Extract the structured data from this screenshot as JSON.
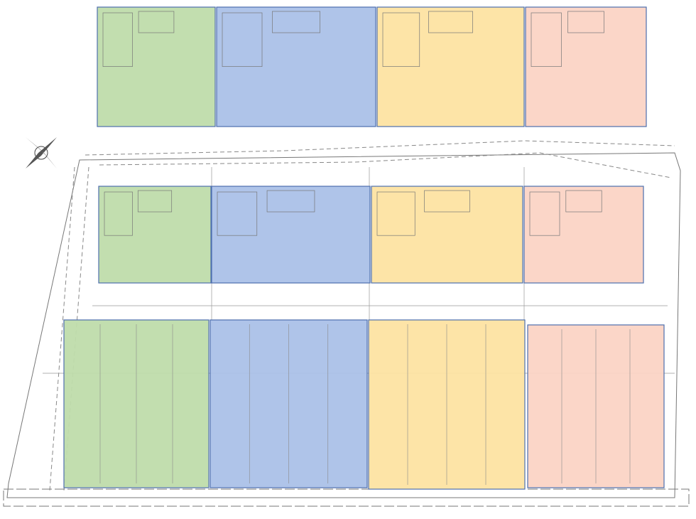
{
  "plan": {
    "unit_colors": [
      "#bfdcab",
      "#abc1e8",
      "#fde3a2",
      "#fbd4c5"
    ]
  }
}
